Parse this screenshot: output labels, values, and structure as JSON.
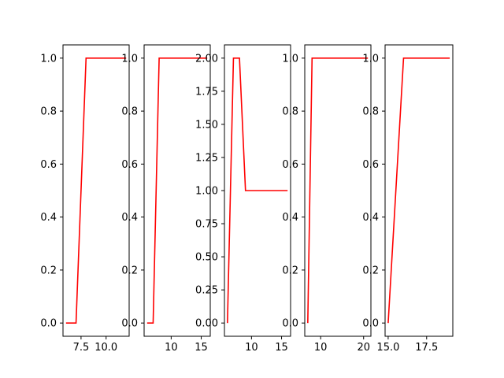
{
  "chart_data": [
    {
      "type": "line",
      "color": "#ff0000",
      "x": [
        6,
        7,
        8,
        12
      ],
      "y": [
        0,
        0,
        1,
        1
      ],
      "xlim": [
        5.7,
        12.3
      ],
      "ylim": [
        -0.05,
        1.05
      ],
      "xticks": [
        7.5,
        10.0
      ],
      "xtick_labels": [
        "7.5",
        "10.0"
      ],
      "yticks": [
        0.0,
        0.2,
        0.4,
        0.6,
        0.8,
        1.0
      ],
      "ytick_labels": [
        "0.0",
        "0.2",
        "0.4",
        "0.6",
        "0.8",
        "1.0"
      ]
    },
    {
      "type": "line",
      "color": "#ff0000",
      "x": [
        6,
        7,
        8,
        16
      ],
      "y": [
        0,
        0,
        1,
        1
      ],
      "xlim": [
        5.5,
        16.5
      ],
      "ylim": [
        -0.05,
        1.05
      ],
      "xticks": [
        10,
        15
      ],
      "xtick_labels": [
        "10",
        "15"
      ],
      "yticks": [
        0.0,
        0.2,
        0.4,
        0.6,
        0.8,
        1.0
      ],
      "ytick_labels": [
        "0.0",
        "0.2",
        "0.4",
        "0.6",
        "0.8",
        "1.0"
      ]
    },
    {
      "type": "line",
      "color": "#ff0000",
      "x": [
        6,
        7,
        8,
        9,
        16
      ],
      "y": [
        0,
        2,
        2,
        1,
        1
      ],
      "xlim": [
        5.5,
        16.5
      ],
      "ylim": [
        -0.1,
        2.1
      ],
      "xticks": [
        10,
        15
      ],
      "xtick_labels": [
        "10",
        "15"
      ],
      "yticks": [
        0.0,
        0.25,
        0.5,
        0.75,
        1.0,
        1.25,
        1.5,
        1.75,
        2.0
      ],
      "ytick_labels": [
        "0.00",
        "0.25",
        "0.50",
        "0.75",
        "1.00",
        "1.25",
        "1.50",
        "1.75",
        "2.00"
      ]
    },
    {
      "type": "line",
      "color": "#ff0000",
      "x": [
        7,
        8,
        21
      ],
      "y": [
        0,
        1,
        1
      ],
      "xlim": [
        6.3,
        21.7
      ],
      "ylim": [
        -0.05,
        1.05
      ],
      "xticks": [
        10,
        20
      ],
      "xtick_labels": [
        "10",
        "20"
      ],
      "yticks": [
        0.0,
        0.2,
        0.4,
        0.6,
        0.8,
        1.0
      ],
      "ytick_labels": [
        "0.0",
        "0.2",
        "0.4",
        "0.6",
        "0.8",
        "1.0"
      ]
    },
    {
      "type": "line",
      "color": "#ff0000",
      "x": [
        15,
        16,
        19
      ],
      "y": [
        0,
        1,
        1
      ],
      "xlim": [
        14.8,
        19.2
      ],
      "ylim": [
        -0.05,
        1.05
      ],
      "xticks": [
        15.0,
        17.5
      ],
      "xtick_labels": [
        "15.0",
        "17.5"
      ],
      "yticks": [
        0.0,
        0.2,
        0.4,
        0.6,
        0.8,
        1.0
      ],
      "ytick_labels": [
        "0.0",
        "0.2",
        "0.4",
        "0.6",
        "0.8",
        "1.0"
      ]
    }
  ]
}
